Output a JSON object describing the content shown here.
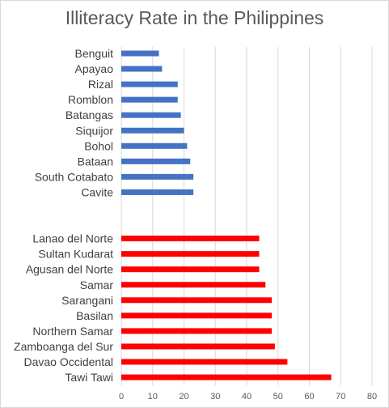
{
  "chart_data": {
    "type": "bar",
    "orientation": "horizontal",
    "title": "Illiteracy Rate in the Philippines",
    "xlabel": "",
    "ylabel": "",
    "xlim": [
      0,
      80
    ],
    "x_ticks": [
      0,
      10,
      20,
      30,
      40,
      50,
      60,
      70,
      80
    ],
    "grid": "vertical gridlines",
    "legend": "none",
    "groups": [
      {
        "color": "#4472c4",
        "categories": [
          "Benguit",
          "Apayao",
          "Rizal",
          "Romblon",
          "Batangas",
          "Siquijor",
          "Bohol",
          "Bataan",
          "South Cotabato",
          "Cavite"
        ],
        "values": [
          12,
          13,
          18,
          18,
          19,
          20,
          21,
          22,
          23,
          23
        ]
      },
      {
        "color": "#ff0000",
        "categories": [
          "Lanao del Norte",
          "Sultan Kudarat",
          "Agusan del Norte",
          "Samar",
          "Sarangani",
          "Basilan",
          "Northern Samar",
          "Zamboanga del Sur",
          "Davao Occidental",
          "Tawi Tawi"
        ],
        "values": [
          44,
          44,
          44,
          46,
          48,
          48,
          48,
          49,
          53,
          67
        ]
      }
    ]
  }
}
